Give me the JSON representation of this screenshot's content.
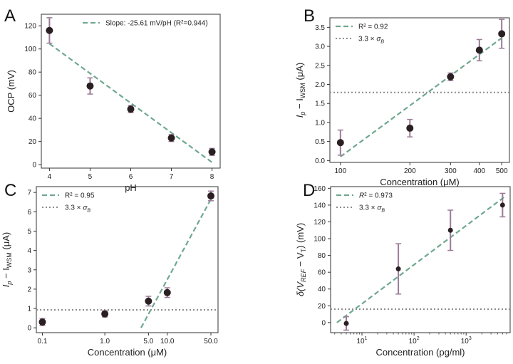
{
  "colors": {
    "dash": "#6fa88f",
    "dotted": "#8c8c8c",
    "marker": "#2a1f22",
    "errorbar": "#9b7a97",
    "axis": "#333333",
    "text": "#222222"
  },
  "chart_data": [
    {
      "panel": "A",
      "type": "scatter",
      "title": "",
      "xlabel": "pH",
      "ylabel": "OCP (mV)",
      "xscale": "linear",
      "xlim": [
        3.8,
        8.2
      ],
      "ylim": [
        -3,
        130
      ],
      "xticks": [
        {
          "v": 4,
          "label": "4"
        },
        {
          "v": 5,
          "label": "5"
        },
        {
          "v": 6,
          "label": "6"
        },
        {
          "v": 7,
          "label": "7"
        },
        {
          "v": 8,
          "label": "8"
        }
      ],
      "yticks": [
        {
          "v": 0,
          "label": "0"
        },
        {
          "v": 20,
          "label": "20"
        },
        {
          "v": 40,
          "label": "40"
        },
        {
          "v": 60,
          "label": "60"
        },
        {
          "v": 80,
          "label": "80"
        },
        {
          "v": 100,
          "label": "100"
        },
        {
          "v": 120,
          "label": "120"
        }
      ],
      "points": [
        {
          "x": 4,
          "y": 116,
          "err": 11
        },
        {
          "x": 5,
          "y": 68,
          "err": 7
        },
        {
          "x": 6,
          "y": 48,
          "err": 3
        },
        {
          "x": 7,
          "y": 23,
          "err": 3
        },
        {
          "x": 8,
          "y": 11,
          "err": 3
        }
      ],
      "marker_r": 5,
      "fit": {
        "x1": 4,
        "y1": 104.5,
        "x2": 8,
        "y2": 2.0
      },
      "baseline": null,
      "legend": [
        {
          "kind": "dash",
          "label": "Slope: -25.61 mV/pH (R²=0.944)"
        }
      ],
      "legend_loc": "top-right"
    },
    {
      "panel": "B",
      "type": "scatter",
      "title": "",
      "xlabel": "Concentration (μM)",
      "ylabel_main": "I",
      "ylabel_sub1": "p",
      "ylabel_mid": " − I",
      "ylabel_sub2": "WSM",
      "ylabel_unit": " (μA)",
      "xscale": "log",
      "xlim": [
        90,
        540
      ],
      "ylim": [
        -0.05,
        3.75
      ],
      "xticks": [
        {
          "v": 100,
          "label": "100"
        },
        {
          "v": 200,
          "label": "200"
        },
        {
          "v": 300,
          "label": "300"
        },
        {
          "v": 400,
          "label": "400"
        },
        {
          "v": 500,
          "label": "500"
        }
      ],
      "yticks": [
        {
          "v": 0,
          "label": "0.0"
        },
        {
          "v": 0.5,
          "label": "0.5"
        },
        {
          "v": 1,
          "label": "1.0"
        },
        {
          "v": 1.5,
          "label": "1.5"
        },
        {
          "v": 2,
          "label": "2.0"
        },
        {
          "v": 2.5,
          "label": "2.5"
        },
        {
          "v": 3,
          "label": "3.0"
        },
        {
          "v": 3.5,
          "label": "3.5"
        }
      ],
      "points": [
        {
          "x": 100,
          "y": 0.47,
          "err": 0.33
        },
        {
          "x": 200,
          "y": 0.85,
          "err": 0.23
        },
        {
          "x": 300,
          "y": 2.2,
          "err": 0.1
        },
        {
          "x": 400,
          "y": 2.9,
          "err": 0.28
        },
        {
          "x": 500,
          "y": 3.33,
          "err": 0.38
        }
      ],
      "marker_r": 5,
      "fit": {
        "x1": 100,
        "y1": 0.1,
        "x2": 500,
        "y2": 3.22
      },
      "baseline": 1.79,
      "legend": [
        {
          "kind": "dash",
          "label": "R² = 0.92"
        },
        {
          "kind": "dot",
          "label": "3.3 × σ",
          "sub": "B"
        }
      ],
      "legend_loc": "top-left"
    },
    {
      "panel": "C",
      "type": "scatter",
      "title": "",
      "xlabel": "Concentration (μM)",
      "ylabel_main": "I",
      "ylabel_sub1": "p",
      "ylabel_mid": " − I",
      "ylabel_sub2": "WSM",
      "ylabel_unit": " (μA)",
      "xscale": "log",
      "xlim": [
        0.08,
        65
      ],
      "ylim": [
        -0.25,
        7.3
      ],
      "xticks": [
        {
          "v": 0.1,
          "label": "0.1"
        },
        {
          "v": 1,
          "label": "1.0"
        },
        {
          "v": 5,
          "label": "5.0"
        },
        {
          "v": 10,
          "label": "10.0"
        },
        {
          "v": 50,
          "label": "50.0"
        }
      ],
      "yticks": [
        {
          "v": 0,
          "label": "0"
        },
        {
          "v": 1,
          "label": "1"
        },
        {
          "v": 2,
          "label": "2"
        },
        {
          "v": 3,
          "label": "3"
        },
        {
          "v": 4,
          "label": "4"
        },
        {
          "v": 5,
          "label": "5"
        },
        {
          "v": 6,
          "label": "6"
        },
        {
          "v": 7,
          "label": "7"
        }
      ],
      "points": [
        {
          "x": 0.1,
          "y": 0.3,
          "err": 0.18
        },
        {
          "x": 1,
          "y": 0.72,
          "err": 0.16
        },
        {
          "x": 5,
          "y": 1.38,
          "err": 0.25
        },
        {
          "x": 10,
          "y": 1.82,
          "err": 0.25
        },
        {
          "x": 50,
          "y": 6.82,
          "err": 0.25
        }
      ],
      "marker_r": 5,
      "fit": {
        "x1": 3.8,
        "y1": 0.0,
        "x2": 50,
        "y2": 6.65
      },
      "baseline": 0.93,
      "legend": [
        {
          "kind": "dash",
          "label": "R² = 0.95"
        },
        {
          "kind": "dot",
          "label": "3.3 × σ",
          "sub": "B"
        }
      ],
      "legend_loc": "top-left"
    },
    {
      "panel": "D",
      "type": "scatter",
      "title": "",
      "xlabel": "Concentration (pg/ml)",
      "ylabel_main": "δ(V",
      "ylabel_sub1": "REF",
      "ylabel_mid": " − V",
      "ylabel_sub2": "T",
      "ylabel_unit": ") (mV)",
      "xscale": "log",
      "xlim": [
        2.5,
        7000
      ],
      "ylim": [
        -12,
        162
      ],
      "xticks": [
        {
          "v": 10,
          "label": "10",
          "sup": "1"
        },
        {
          "v": 100,
          "label": "10",
          "sup": "2"
        },
        {
          "v": 1000,
          "label": "10",
          "sup": "3"
        }
      ],
      "minor_xticks": [
        3,
        4,
        5,
        6,
        7,
        8,
        9,
        20,
        30,
        40,
        50,
        60,
        70,
        80,
        90,
        200,
        300,
        400,
        500,
        600,
        700,
        800,
        900,
        2000,
        3000,
        4000,
        5000,
        6000
      ],
      "yticks": [
        {
          "v": 0,
          "label": "0"
        },
        {
          "v": 20,
          "label": "20"
        },
        {
          "v": 40,
          "label": "40"
        },
        {
          "v": 60,
          "label": "60"
        },
        {
          "v": 80,
          "label": "80"
        },
        {
          "v": 100,
          "label": "100"
        },
        {
          "v": 120,
          "label": "120"
        },
        {
          "v": 140,
          "label": "140"
        },
        {
          "v": 160,
          "label": "160"
        }
      ],
      "points": [
        {
          "x": 5,
          "y": -1,
          "err": 8
        },
        {
          "x": 50,
          "y": 64,
          "err": 30
        },
        {
          "x": 500,
          "y": 110,
          "err": 24
        },
        {
          "x": 5000,
          "y": 140,
          "err": 14
        }
      ],
      "marker_r": 3.5,
      "fit": {
        "x1": 3.3,
        "y1": 0,
        "x2": 5500,
        "y2": 150
      },
      "baseline": 16,
      "legend": [
        {
          "kind": "dash",
          "label": "R² = 0.973",
          "italic_r": true
        },
        {
          "kind": "dot",
          "label": "3.3 × σ",
          "sub": "B"
        }
      ],
      "legend_loc": "top-left"
    }
  ]
}
